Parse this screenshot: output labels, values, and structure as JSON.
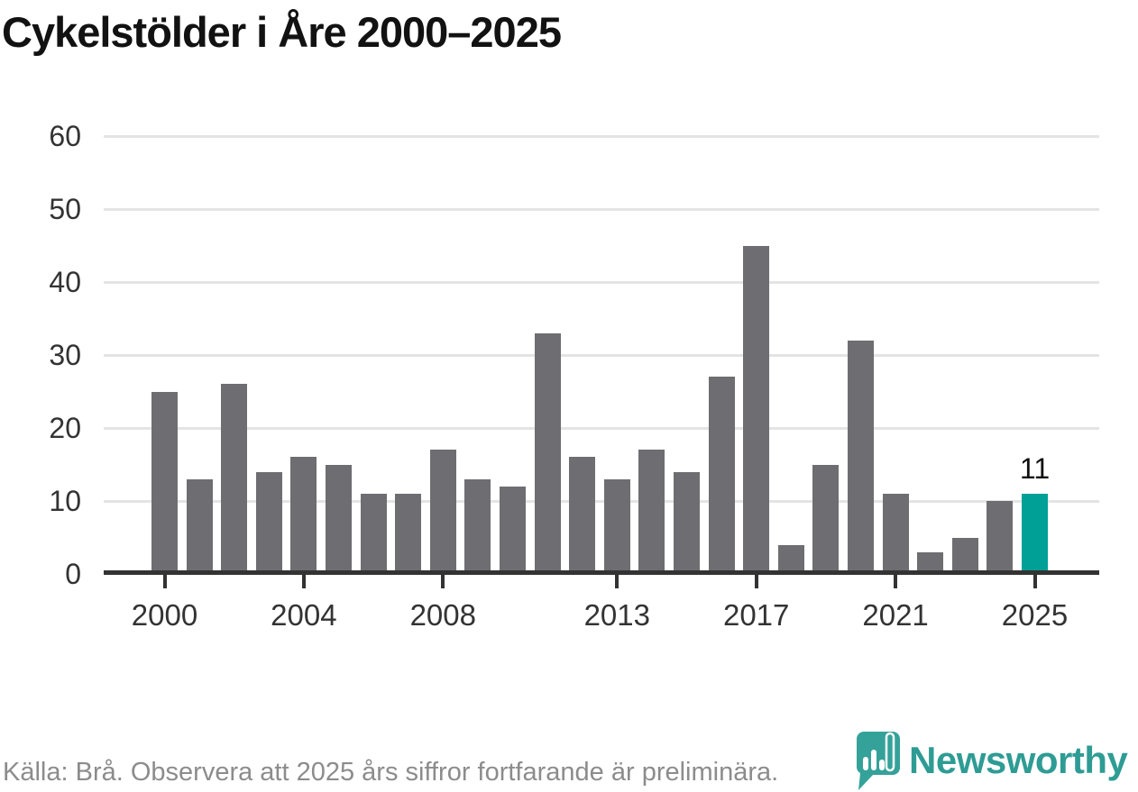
{
  "title": "Cykelstölder i Åre 2000–2025",
  "chart_data": {
    "type": "bar",
    "title": "Cykelstölder i Åre 2000–2025",
    "categories": [
      2000,
      2001,
      2002,
      2003,
      2004,
      2005,
      2006,
      2007,
      2008,
      2009,
      2010,
      2011,
      2012,
      2013,
      2014,
      2015,
      2016,
      2017,
      2018,
      2019,
      2020,
      2021,
      2022,
      2023,
      2024,
      2025
    ],
    "values": [
      25,
      13,
      26,
      14,
      16,
      15,
      11,
      11,
      17,
      13,
      12,
      33,
      16,
      13,
      17,
      14,
      27,
      45,
      4,
      15,
      32,
      11,
      3,
      5,
      10,
      11
    ],
    "highlight": {
      "category": 2025,
      "value": 11,
      "data_label": "11"
    },
    "xlabel": "",
    "ylabel": "",
    "ylim": [
      0,
      60
    ],
    "yticks": [
      0,
      10,
      20,
      30,
      40,
      50,
      60
    ],
    "xticks": [
      2000,
      2004,
      2008,
      2013,
      2017,
      2021,
      2025
    ],
    "grid": true,
    "legend": false,
    "colors": {
      "bar": "#6e6d71",
      "highlight": "#00a096",
      "gridline": "#e4e4e4",
      "axis": "#333333",
      "tick_label": "#333333"
    }
  },
  "footer": {
    "source_text": "Källa: Brå. Observera att 2025 års siffror fortfarande är preliminära.",
    "brand": "Newsworthy",
    "brand_color": "#2e9c94",
    "icon_color": "#35a29a"
  }
}
